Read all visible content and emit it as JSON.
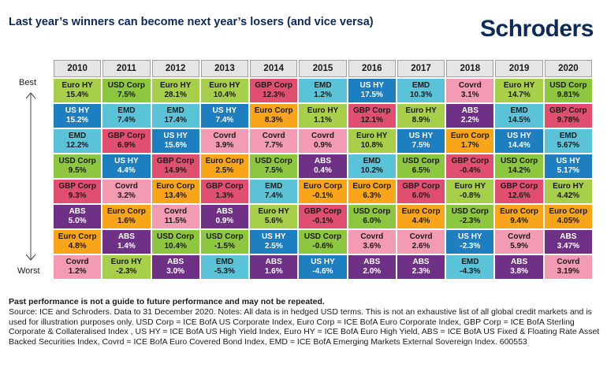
{
  "title": "Last year’s winners can become next year’s losers (and vice versa)",
  "logo": "Schroders",
  "axis": {
    "best": "Best",
    "worst": "Worst"
  },
  "colors": {
    "Euro HY": "#a7cf4a",
    "USD Corp": "#8dc63f",
    "US HY": "#1d7ec0",
    "EMD": "#5bc3d8",
    "GBP Corp": "#e04f70",
    "Covrd": "#f29bb3",
    "Euro Corp": "#f9a51a",
    "ABS": "#6e3186"
  },
  "years": [
    "2010",
    "2011",
    "2012",
    "2013",
    "2014",
    "2015",
    "2016",
    "2017",
    "2018",
    "2019",
    "2020"
  ],
  "columns": [
    [
      [
        "Euro HY",
        "15.4%"
      ],
      [
        "US HY",
        "15.2%"
      ],
      [
        "EMD",
        "12.2%"
      ],
      [
        "USD Corp",
        "9.5%"
      ],
      [
        "GBP Corp",
        "9.3%"
      ],
      [
        "ABS",
        "5.0%"
      ],
      [
        "Euro Corp",
        "4.8%"
      ],
      [
        "Covrd",
        "1.2%"
      ]
    ],
    [
      [
        "USD Corp",
        "7.5%"
      ],
      [
        "EMD",
        "7.4%"
      ],
      [
        "GBP Corp",
        "6.9%"
      ],
      [
        "US HY",
        "4.4%"
      ],
      [
        "Covrd",
        "3.2%"
      ],
      [
        "Euro Corp",
        "1.6%"
      ],
      [
        "ABS",
        "1.4%"
      ],
      [
        "Euro HY",
        "-2.3%"
      ]
    ],
    [
      [
        "Euro HY",
        "28.1%"
      ],
      [
        "EMD",
        "17.4%"
      ],
      [
        "US HY",
        "15.6%"
      ],
      [
        "GBP Corp",
        "14.9%"
      ],
      [
        "Euro Corp",
        "13.4%"
      ],
      [
        "Covrd",
        "11.5%"
      ],
      [
        "USD Corp",
        "10.4%"
      ],
      [
        "ABS",
        "3.0%"
      ]
    ],
    [
      [
        "Euro HY",
        "10.4%"
      ],
      [
        "US HY",
        "7.4%"
      ],
      [
        "Covrd",
        "3.9%"
      ],
      [
        "Euro Corp",
        "2.5%"
      ],
      [
        "GBP Corp",
        "1.3%"
      ],
      [
        "ABS",
        "0.9%"
      ],
      [
        "USD Corp",
        "-1.5%"
      ],
      [
        "EMD",
        "-5.3%"
      ]
    ],
    [
      [
        "GBP Corp",
        "12.3%"
      ],
      [
        "Euro Corp",
        "8.3%"
      ],
      [
        "Covrd",
        "7.7%"
      ],
      [
        "USD Corp",
        "7.5%"
      ],
      [
        "EMD",
        "7.4%"
      ],
      [
        "Euro HY",
        "5.6%"
      ],
      [
        "US HY",
        "2.5%"
      ],
      [
        "ABS",
        "1.6%"
      ]
    ],
    [
      [
        "EMD",
        "1.2%"
      ],
      [
        "Euro HY",
        "1.1%"
      ],
      [
        "Covrd",
        "0.9%"
      ],
      [
        "ABS",
        "0.4%"
      ],
      [
        "Euro Corp",
        "-0.1%"
      ],
      [
        "GBP Corp",
        "-0.1%"
      ],
      [
        "USD Corp",
        "-0.6%"
      ],
      [
        "US HY",
        "-4.6%"
      ]
    ],
    [
      [
        "US HY",
        "17.5%"
      ],
      [
        "GBP Corp",
        "12.1%"
      ],
      [
        "Euro HY",
        "10.8%"
      ],
      [
        "EMD",
        "10.2%"
      ],
      [
        "Euro Corp",
        "6.3%"
      ],
      [
        "USD Corp",
        "6.0%"
      ],
      [
        "Covrd",
        "3.6%"
      ],
      [
        "ABS",
        "2.0%"
      ]
    ],
    [
      [
        "EMD",
        "10.3%"
      ],
      [
        "Euro HY",
        "8.9%"
      ],
      [
        "US HY",
        "7.5%"
      ],
      [
        "USD Corp",
        "6.5%"
      ],
      [
        "GBP Corp",
        "6.0%"
      ],
      [
        "Euro Corp",
        "4.4%"
      ],
      [
        "Covrd",
        "2.6%"
      ],
      [
        "ABS",
        "2.3%"
      ]
    ],
    [
      [
        "Covrd",
        "3.1%"
      ],
      [
        "ABS",
        "2.2%"
      ],
      [
        "Euro Corp",
        "1.7%"
      ],
      [
        "GBP Corp",
        "-0.4%"
      ],
      [
        "Euro HY",
        "-0.8%"
      ],
      [
        "USD Corp",
        "-2.3%"
      ],
      [
        "US HY",
        "-2.3%"
      ],
      [
        "EMD",
        "-4.3%"
      ]
    ],
    [
      [
        "Euro HY",
        "14.7%"
      ],
      [
        "EMD",
        "14.5%"
      ],
      [
        "US HY",
        "14.4%"
      ],
      [
        "USD Corp",
        "14.2%"
      ],
      [
        "GBP Corp",
        "12.6%"
      ],
      [
        "Euro Corp",
        "9.4%"
      ],
      [
        "Covrd",
        "5.9%"
      ],
      [
        "ABS",
        "3.8%"
      ]
    ],
    [
      [
        "USD Corp",
        "9.81%"
      ],
      [
        "GBP Corp",
        "9.78%"
      ],
      [
        "EMD",
        "5.67%"
      ],
      [
        "US HY",
        "5.17%"
      ],
      [
        "Euro HY",
        "4.42%"
      ],
      [
        "Euro Corp",
        "4.05%"
      ],
      [
        "ABS",
        "3.47%"
      ],
      [
        "Covrd",
        "3.19%"
      ]
    ]
  ],
  "footer": {
    "warning": "Past performance is not a guide to future performance and may not be repeated.",
    "source": "Source: ICE and Schroders. Data to 31 December 2020. Notes: All data is in hedged USD terms. This is not an exhaustive list of all global credit markets and is used for illustration purposes only. USD Corp = ICE BofA US Corporate Index, Euro Corp = ICE BofA Euro Corporate Index, GBP Corp = ICE BofA Sterling Corporate & Collateralised Index , US HY = ICE BofA US High Yield Index, Euro HY = ICE BofA Euro High Yield, ABS = ICE BofA US Fixed & Floating Rate Asset Backed Securities Index, Covrd = ICE BofA Euro Covered Bond Index, EMD = ICE BofA Emerging Markets External Sovereign Index. 600553"
  }
}
